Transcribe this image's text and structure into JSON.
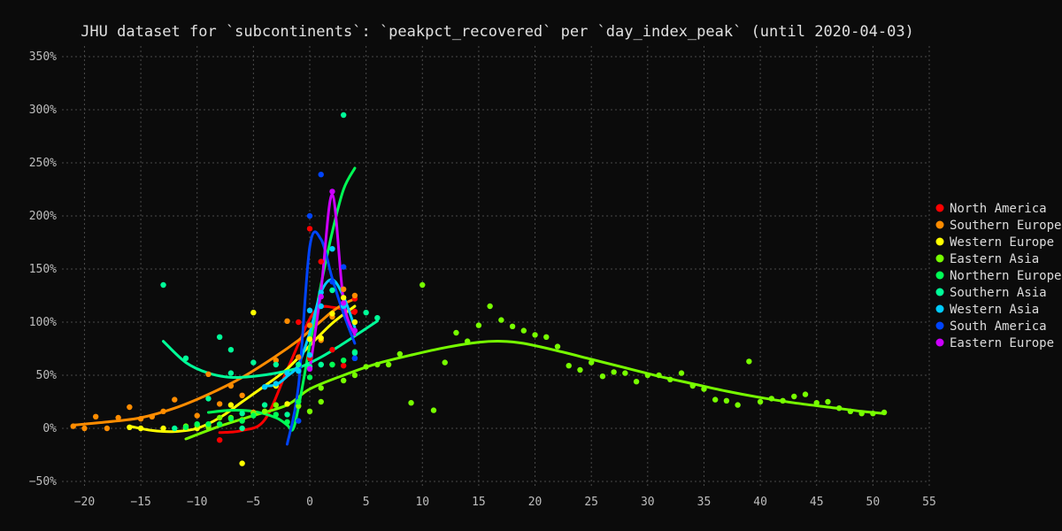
{
  "chart_data": {
    "type": "scatter",
    "title": "JHU dataset for `subcontinents`: `peakpct_recovered` per `day_index_peak` (until 2020-04-03)",
    "xlim": [
      -22,
      55
    ],
    "ylim": [
      -55,
      360
    ],
    "grid": true,
    "legend_position": "right",
    "x_ticks": [
      -20,
      -15,
      -10,
      -5,
      0,
      5,
      10,
      15,
      20,
      25,
      30,
      35,
      40,
      45,
      50,
      55
    ],
    "y_ticks": [
      -50,
      0,
      50,
      100,
      150,
      200,
      250,
      300,
      350
    ],
    "x_tick_labels": [
      "−20",
      "−15",
      "−10",
      "−5",
      "0",
      "5",
      "10",
      "15",
      "20",
      "25",
      "30",
      "35",
      "40",
      "45",
      "50",
      "55"
    ],
    "y_tick_labels": [
      "−50%",
      "0%",
      "50%",
      "100%",
      "150%",
      "200%",
      "250%",
      "300%",
      "350%"
    ],
    "series": [
      {
        "name": "North America",
        "color": "#ff0000",
        "points": [
          [
            -8,
            -11
          ],
          [
            -1,
            100
          ],
          [
            0,
            188
          ],
          [
            0,
            66
          ],
          [
            1,
            157
          ],
          [
            2,
            74
          ],
          [
            3,
            59
          ],
          [
            4,
            122
          ],
          [
            4,
            110
          ]
        ],
        "trend": [
          [
            -8,
            -4
          ],
          [
            -6,
            -2
          ],
          [
            -4,
            8
          ],
          [
            -2,
            55
          ],
          [
            0,
            103
          ],
          [
            1,
            114
          ],
          [
            2,
            114
          ],
          [
            3,
            112
          ],
          [
            4,
            108
          ]
        ]
      },
      {
        "name": "Southern Europe",
        "color": "#ff8c00",
        "points": [
          [
            -21,
            2
          ],
          [
            -20,
            0
          ],
          [
            -19,
            11
          ],
          [
            -18,
            0
          ],
          [
            -17,
            10
          ],
          [
            -16,
            20
          ],
          [
            -15,
            9
          ],
          [
            -14,
            11
          ],
          [
            -13,
            16
          ],
          [
            -12,
            27
          ],
          [
            -10,
            12
          ],
          [
            -9,
            51
          ],
          [
            -8,
            23
          ],
          [
            -7,
            40
          ],
          [
            -6,
            31
          ],
          [
            -5,
            15
          ],
          [
            -3,
            64
          ],
          [
            -2,
            101
          ],
          [
            -1,
            67
          ],
          [
            0,
            97
          ],
          [
            1,
            83
          ],
          [
            2,
            105
          ],
          [
            3,
            131
          ],
          [
            4,
            125
          ]
        ],
        "trend": [
          [
            -21,
            3
          ],
          [
            -18,
            6
          ],
          [
            -15,
            10
          ],
          [
            -12,
            19
          ],
          [
            -9,
            32
          ],
          [
            -6,
            48
          ],
          [
            -3,
            68
          ],
          [
            -1,
            83
          ],
          [
            0,
            92
          ],
          [
            1,
            101
          ],
          [
            2,
            110
          ],
          [
            3,
            117
          ],
          [
            4,
            122
          ]
        ]
      },
      {
        "name": "Western Europe",
        "color": "#ffff00",
        "points": [
          [
            -16,
            1
          ],
          [
            -15,
            0
          ],
          [
            -13,
            0
          ],
          [
            -11,
            0
          ],
          [
            -10,
            0
          ],
          [
            -9,
            2
          ],
          [
            -7,
            22
          ],
          [
            -6,
            -33
          ],
          [
            -5,
            109
          ],
          [
            -3,
            40
          ],
          [
            -2,
            23
          ],
          [
            0,
            84
          ],
          [
            1,
            85
          ],
          [
            2,
            108
          ],
          [
            3,
            123
          ],
          [
            4,
            100
          ]
        ],
        "trend": [
          [
            -16,
            2
          ],
          [
            -14,
            -2
          ],
          [
            -12,
            -3
          ],
          [
            -10,
            0
          ],
          [
            -8,
            10
          ],
          [
            -6,
            25
          ],
          [
            -4,
            40
          ],
          [
            -2,
            56
          ],
          [
            0,
            78
          ],
          [
            2,
            99
          ],
          [
            4,
            115
          ]
        ]
      },
      {
        "name": "Eastern Asia",
        "color": "#77ff00",
        "points": [
          [
            -11,
            2
          ],
          [
            -10,
            3
          ],
          [
            -9,
            1
          ],
          [
            -8,
            10
          ],
          [
            -7,
            10
          ],
          [
            -6,
            8
          ],
          [
            -5,
            14
          ],
          [
            -4,
            16
          ],
          [
            -3,
            22
          ],
          [
            -1,
            21
          ],
          [
            0,
            16
          ],
          [
            1,
            25
          ],
          [
            1,
            38
          ],
          [
            2,
            60
          ],
          [
            3,
            45
          ],
          [
            4,
            50
          ],
          [
            5,
            58
          ],
          [
            6,
            60
          ],
          [
            7,
            60
          ],
          [
            8,
            70
          ],
          [
            9,
            24
          ],
          [
            10,
            135
          ],
          [
            11,
            17
          ],
          [
            12,
            62
          ],
          [
            13,
            90
          ],
          [
            14,
            82
          ],
          [
            15,
            97
          ],
          [
            16,
            115
          ],
          [
            17,
            102
          ],
          [
            18,
            96
          ],
          [
            19,
            92
          ],
          [
            20,
            88
          ],
          [
            21,
            86
          ],
          [
            22,
            77
          ],
          [
            23,
            59
          ],
          [
            24,
            55
          ],
          [
            25,
            62
          ],
          [
            26,
            49
          ],
          [
            27,
            53
          ],
          [
            28,
            52
          ],
          [
            29,
            44
          ],
          [
            30,
            50
          ],
          [
            31,
            50
          ],
          [
            32,
            46
          ],
          [
            33,
            52
          ],
          [
            34,
            40
          ],
          [
            35,
            37
          ],
          [
            36,
            27
          ],
          [
            37,
            26
          ],
          [
            38,
            22
          ],
          [
            39,
            63
          ],
          [
            40,
            25
          ],
          [
            41,
            28
          ],
          [
            42,
            26
          ],
          [
            43,
            30
          ],
          [
            44,
            32
          ],
          [
            45,
            24
          ],
          [
            46,
            25
          ],
          [
            47,
            19
          ],
          [
            48,
            16
          ],
          [
            49,
            14
          ],
          [
            50,
            14
          ],
          [
            51,
            15
          ]
        ],
        "trend": [
          [
            -11,
            -10
          ],
          [
            -8,
            2
          ],
          [
            -5,
            12
          ],
          [
            -2,
            22
          ],
          [
            0,
            37
          ],
          [
            3,
            50
          ],
          [
            6,
            61
          ],
          [
            9,
            69
          ],
          [
            12,
            76
          ],
          [
            15,
            81
          ],
          [
            17,
            82
          ],
          [
            19,
            80
          ],
          [
            22,
            73
          ],
          [
            25,
            65
          ],
          [
            28,
            57
          ],
          [
            31,
            49
          ],
          [
            34,
            42
          ],
          [
            37,
            35
          ],
          [
            40,
            29
          ],
          [
            43,
            24
          ],
          [
            46,
            20
          ],
          [
            49,
            16
          ],
          [
            51,
            14
          ]
        ]
      },
      {
        "name": "Northern Europe",
        "color": "#00ff55",
        "points": [
          [
            -11,
            1
          ],
          [
            -10,
            4
          ],
          [
            -9,
            4
          ],
          [
            -8,
            4
          ],
          [
            -7,
            9
          ],
          [
            -6,
            7
          ],
          [
            -5,
            12
          ],
          [
            -3,
            13
          ],
          [
            -2,
            6
          ],
          [
            -1,
            25
          ],
          [
            0,
            48
          ],
          [
            1,
            60
          ],
          [
            2,
            60
          ],
          [
            3,
            64
          ],
          [
            4,
            72
          ]
        ],
        "trend": [
          [
            -9,
            15
          ],
          [
            -7,
            17
          ],
          [
            -5,
            16
          ],
          [
            -3,
            10
          ],
          [
            -2,
            3
          ],
          [
            -1.5,
            -1
          ],
          [
            -1,
            20
          ],
          [
            0,
            78
          ],
          [
            1,
            135
          ],
          [
            2,
            185
          ],
          [
            3,
            225
          ],
          [
            4,
            245
          ]
        ]
      },
      {
        "name": "Southern Asia",
        "color": "#00ff99",
        "points": [
          [
            -13,
            135
          ],
          [
            -12,
            0
          ],
          [
            -11,
            66
          ],
          [
            -9,
            28
          ],
          [
            -8,
            86
          ],
          [
            -7,
            52
          ],
          [
            -7,
            74
          ],
          [
            -6,
            14
          ],
          [
            -6,
            0
          ],
          [
            -5,
            62
          ],
          [
            -4,
            22
          ],
          [
            -3,
            60
          ],
          [
            -2,
            13
          ],
          [
            -1,
            60
          ],
          [
            0,
            58
          ],
          [
            1,
            60
          ],
          [
            2,
            130
          ],
          [
            3,
            295
          ],
          [
            4,
            71
          ],
          [
            5,
            109
          ],
          [
            6,
            104
          ]
        ],
        "trend": [
          [
            -13,
            82
          ],
          [
            -11,
            62
          ],
          [
            -9,
            52
          ],
          [
            -7,
            48
          ],
          [
            -5,
            49
          ],
          [
            -3,
            52
          ],
          [
            -1,
            57
          ],
          [
            1,
            67
          ],
          [
            3,
            80
          ],
          [
            5,
            94
          ],
          [
            6,
            101
          ]
        ]
      },
      {
        "name": "Western Asia",
        "color": "#00ccff",
        "points": [
          [
            -4,
            39
          ],
          [
            -3,
            42
          ],
          [
            -2,
            52
          ],
          [
            -1,
            54
          ],
          [
            0,
            69
          ],
          [
            0,
            111
          ],
          [
            1,
            115
          ],
          [
            1,
            128
          ],
          [
            2,
            169
          ],
          [
            3,
            115
          ],
          [
            4,
            66
          ]
        ],
        "trend": [
          [
            -4,
            40
          ],
          [
            -3,
            41
          ],
          [
            -2,
            49
          ],
          [
            -1,
            60
          ],
          [
            0,
            90
          ],
          [
            1,
            128
          ],
          [
            2,
            140
          ],
          [
            3,
            124
          ],
          [
            4,
            95
          ]
        ]
      },
      {
        "name": "South America",
        "color": "#0044ff",
        "points": [
          [
            -1,
            7
          ],
          [
            0,
            200
          ],
          [
            1,
            239
          ],
          [
            2,
            138
          ],
          [
            3,
            152
          ],
          [
            4,
            66
          ]
        ],
        "trend": [
          [
            -2,
            -15
          ],
          [
            -1,
            40
          ],
          [
            0,
            171
          ],
          [
            1,
            178
          ],
          [
            2,
            141
          ],
          [
            3,
            108
          ],
          [
            4,
            80
          ]
        ]
      },
      {
        "name": "Eastern Europe",
        "color": "#cc00ff",
        "points": [
          [
            0,
            56
          ],
          [
            1,
            124
          ],
          [
            2,
            223
          ],
          [
            3,
            118
          ],
          [
            4,
            92
          ]
        ],
        "trend": [
          [
            0,
            55
          ],
          [
            1,
            130
          ],
          [
            2,
            220
          ],
          [
            3,
            120
          ],
          [
            4,
            88
          ]
        ]
      }
    ]
  }
}
